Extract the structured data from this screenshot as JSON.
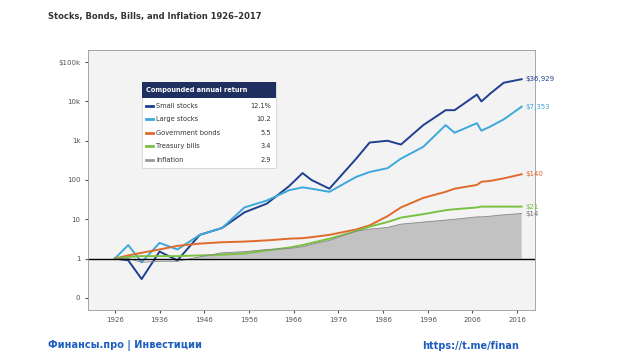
{
  "chart_data": {
    "type": "line",
    "title": "Stocks, Bonds, Bills, and Inflation 1926–2017",
    "legend_title": "Compounded annual return",
    "legend": "upper left",
    "log": "y",
    "annotations": [
      "Финансы.про | Инвестиции",
      "https://t.me/finan"
    ],
    "x": [
      1926,
      1929,
      1932,
      1936,
      1940,
      1945,
      1950,
      1955,
      1960,
      1965,
      1968,
      1970,
      1974,
      1980,
      1983,
      1987,
      1990,
      1995,
      2000,
      2002,
      2007,
      2008,
      2010,
      2013,
      2017
    ],
    "xlim": [
      1920,
      2020
    ],
    "xticks": [
      1926,
      1936,
      1946,
      1956,
      1966,
      1976,
      1986,
      1996,
      2006,
      2016
    ],
    "ylim": [
      0.05,
      200000
    ],
    "yticks": [
      {
        "value": 0.1,
        "label": "0"
      },
      1,
      10,
      100,
      {
        "value": 1000,
        "label": "1k"
      },
      {
        "value": 10000,
        "label": "10k"
      },
      {
        "value": 100000,
        "label": "$100k"
      }
    ],
    "series": [
      {
        "name": "Small stocks",
        "annual_return_label": "12.1%",
        "end_label": "$36,929",
        "color": "#1f3f8f",
        "type": "line",
        "values": [
          1,
          0.9,
          0.3,
          1.5,
          0.9,
          4,
          6,
          15,
          25,
          70,
          150,
          100,
          60,
          350,
          900,
          1000,
          800,
          2500,
          6000,
          6000,
          15000,
          10000,
          16000,
          30000,
          36929
        ]
      },
      {
        "name": "Large stocks",
        "annual_return_label": "10.2",
        "end_label": "$7,353",
        "color": "#3ea8dc",
        "type": "line",
        "values": [
          1,
          2.2,
          0.8,
          2.5,
          1.7,
          4,
          6,
          20,
          30,
          55,
          65,
          60,
          50,
          120,
          160,
          200,
          350,
          700,
          2500,
          1600,
          2800,
          1800,
          2300,
          3500,
          7353
        ]
      },
      {
        "name": "Government bonds",
        "annual_return_label": "5.5",
        "end_label": "$140",
        "color": "#e06a2c",
        "type": "line",
        "values": [
          1,
          1.2,
          1.4,
          1.7,
          2.1,
          2.4,
          2.6,
          2.7,
          2.9,
          3.2,
          3.3,
          3.5,
          4,
          5.5,
          7,
          12,
          20,
          35,
          50,
          60,
          75,
          90,
          95,
          110,
          140
        ]
      },
      {
        "name": "Treasury bills",
        "annual_return_label": "3.4",
        "end_label": "$21",
        "color": "#7ac142",
        "type": "line",
        "values": [
          1,
          1.1,
          1.15,
          1.15,
          1.15,
          1.2,
          1.25,
          1.35,
          1.6,
          1.9,
          2.2,
          2.5,
          3.2,
          5,
          6.5,
          8.5,
          11,
          13.5,
          17,
          18,
          20,
          21,
          21,
          21,
          21
        ]
      },
      {
        "name": "Inflation",
        "annual_return_label": "2.9",
        "end_label": "$14",
        "color": "#bdbdbd",
        "type": "area",
        "values": [
          1,
          1,
          0.8,
          0.85,
          0.85,
          1.1,
          1.4,
          1.5,
          1.7,
          1.8,
          2,
          2.3,
          2.9,
          5,
          5.6,
          6.2,
          7.5,
          8.5,
          9.5,
          10,
          11.5,
          11.5,
          12,
          13,
          14
        ]
      }
    ]
  }
}
